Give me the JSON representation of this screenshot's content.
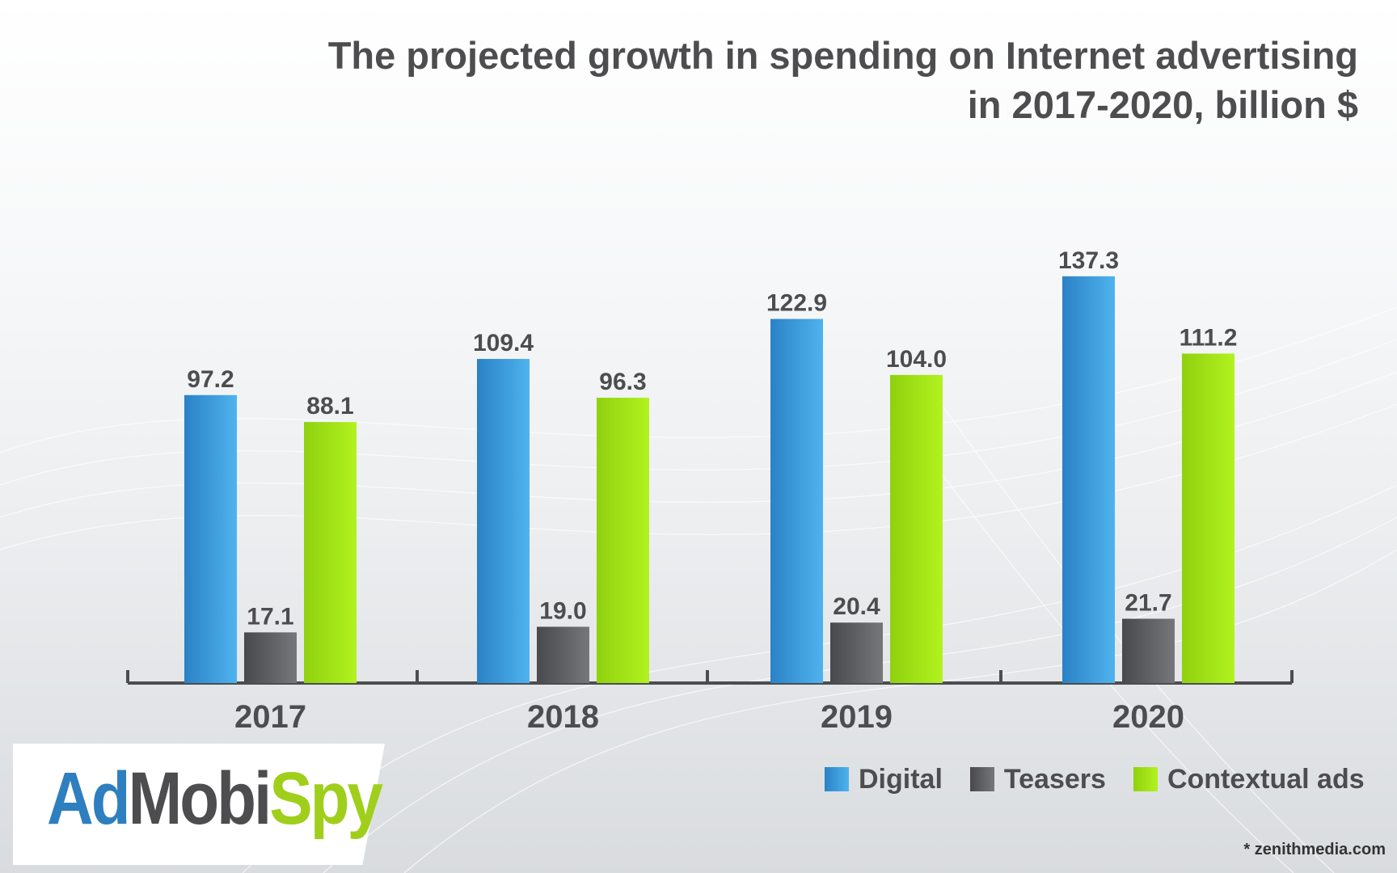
{
  "title": {
    "line1": "The projected growth in spending on Internet advertising",
    "line2": "in 2017-2020, billion $"
  },
  "colors": {
    "digital": "#3a9be0",
    "teasers": "#5d5f62",
    "contextual": "#a2e61a",
    "text": "#4d4d4f"
  },
  "chart_data": {
    "type": "bar",
    "categories": [
      "2017",
      "2018",
      "2019",
      "2020"
    ],
    "series": [
      {
        "name": "Digital",
        "values": [
          97.2,
          109.4,
          122.9,
          137.3
        ]
      },
      {
        "name": "Teasers",
        "values": [
          17.1,
          19.0,
          20.4,
          21.7
        ]
      },
      {
        "name": "Contextual ads",
        "values": [
          88.1,
          96.3,
          104.0,
          111.2
        ]
      }
    ],
    "xlabel": "",
    "ylabel": "",
    "ylim": [
      0,
      140
    ],
    "grid": false,
    "legend": "bottom-right"
  },
  "legend": {
    "digital": "Digital",
    "teasers": "Teasers",
    "contextual": "Contextual ads"
  },
  "logo": {
    "ad": "Ad",
    "mobi": "Mobi",
    "spy": "Spy"
  },
  "source": "* zenithmedia.com"
}
